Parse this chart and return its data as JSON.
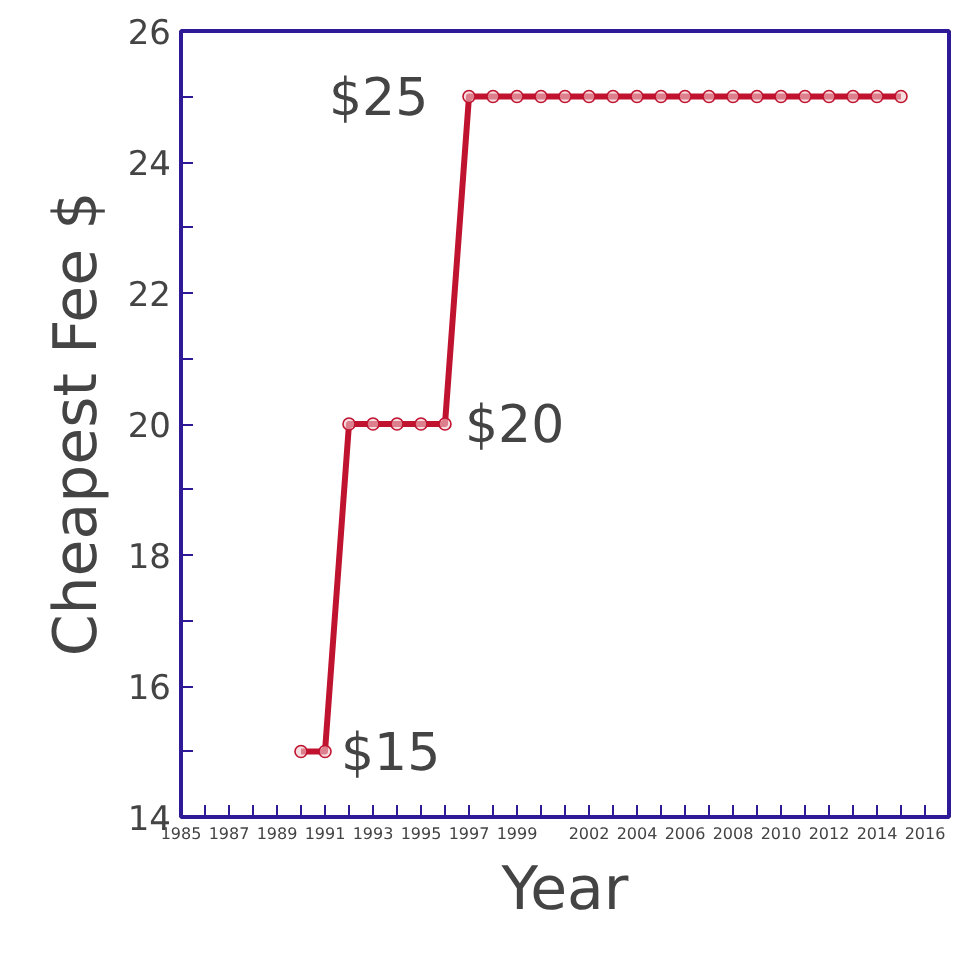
{
  "chart_data": {
    "type": "line",
    "xlabel": "Year",
    "ylabel": "Cheapest Fee $",
    "x": [
      1990,
      1991,
      1992,
      1993,
      1994,
      1995,
      1996,
      1997,
      1998,
      1999,
      2000,
      2001,
      2002,
      2003,
      2004,
      2005,
      2006,
      2007,
      2008,
      2009,
      2010,
      2011,
      2012,
      2013,
      2014,
      2015
    ],
    "series": [
      {
        "color": "#c0132f",
        "values": [
          15,
          15,
          20,
          20,
          20,
          20,
          20,
          25,
          25,
          25,
          25,
          25,
          25,
          25,
          25,
          25,
          25,
          25,
          25,
          25,
          25,
          25,
          25,
          25,
          25,
          25
        ]
      }
    ],
    "xlim": [
      1985,
      2017
    ],
    "ylim": [
      14,
      26
    ],
    "xticks": [
      1985,
      1987,
      1989,
      1991,
      1993,
      1995,
      1997,
      1999,
      2002,
      2004,
      2006,
      2008,
      2010,
      2012,
      2014,
      2016
    ],
    "yticks": [
      14,
      16,
      18,
      20,
      22,
      24,
      26
    ],
    "annotations": [
      {
        "text": "$15",
        "x": 1991,
        "y": 15
      },
      {
        "text": "$20",
        "x": 1996,
        "y": 20
      },
      {
        "text": "$25",
        "x": 1997,
        "y": 25
      }
    ],
    "marker": "circle",
    "line_style": "solid"
  }
}
